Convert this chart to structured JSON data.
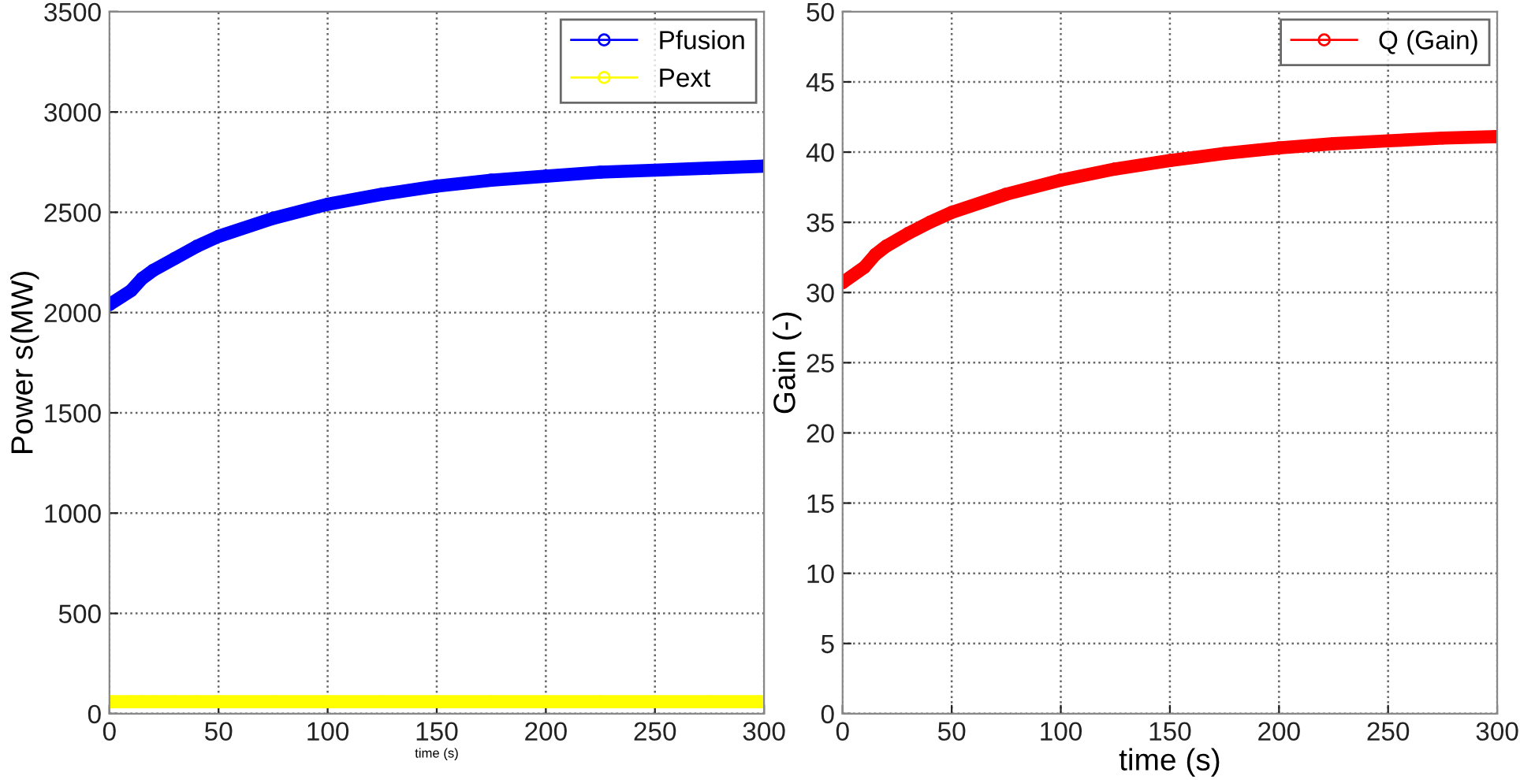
{
  "chart_data": [
    {
      "type": "line",
      "xlabel": "time (s)",
      "ylabel": "Power s(MW)",
      "x": [
        0,
        10,
        15,
        20,
        30,
        40,
        50,
        75,
        100,
        125,
        150,
        175,
        200,
        225,
        250,
        275,
        300
      ],
      "xlim": [
        0,
        300
      ],
      "xticks": [
        0,
        50,
        100,
        150,
        200,
        250,
        300
      ],
      "ylim": [
        0,
        3500
      ],
      "yticks": [
        0,
        500,
        1000,
        1500,
        2000,
        2500,
        3000,
        3500
      ],
      "grid": true,
      "legend": "top right",
      "marker": "circle",
      "line_style": "solid",
      "series": [
        {
          "name": "Pfusion",
          "color": "#0000ff",
          "values": [
            2040,
            2110,
            2170,
            2210,
            2270,
            2330,
            2380,
            2470,
            2540,
            2590,
            2630,
            2660,
            2680,
            2700,
            2710,
            2720,
            2730
          ]
        },
        {
          "name": "Pext",
          "color": "#ffff00",
          "values": [
            60,
            60,
            60,
            60,
            60,
            60,
            60,
            60,
            60,
            60,
            60,
            60,
            60,
            60,
            60,
            60,
            60
          ]
        }
      ]
    },
    {
      "type": "line",
      "xlabel": "time (s)",
      "ylabel": "Gain (-)",
      "x": [
        0,
        10,
        15,
        20,
        30,
        40,
        50,
        75,
        100,
        125,
        150,
        175,
        200,
        225,
        250,
        275,
        300
      ],
      "xlim": [
        0,
        300
      ],
      "xticks": [
        0,
        50,
        100,
        150,
        200,
        250,
        300
      ],
      "ylim": [
        0,
        50
      ],
      "yticks": [
        0,
        5,
        10,
        15,
        20,
        25,
        30,
        35,
        40,
        45,
        50
      ],
      "grid": true,
      "legend": "top right",
      "marker": "circle",
      "line_style": "solid",
      "series": [
        {
          "name": "Q (Gain)",
          "color": "#ff0000",
          "values": [
            30.7,
            31.8,
            32.7,
            33.3,
            34.2,
            35,
            35.7,
            37,
            38,
            38.8,
            39.4,
            39.9,
            40.3,
            40.6,
            40.8,
            41,
            41.1
          ]
        }
      ]
    }
  ]
}
